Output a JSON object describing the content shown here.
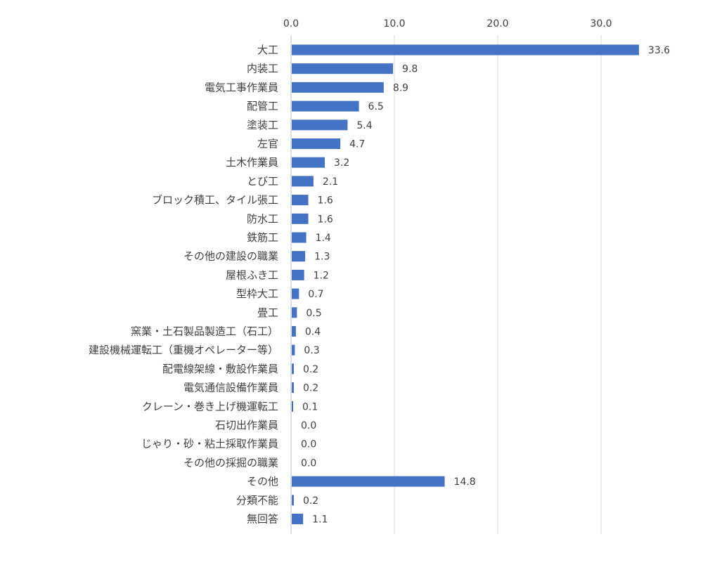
{
  "chart_data": {
    "type": "bar",
    "orientation": "horizontal",
    "title": "",
    "xlabel": "",
    "ylabel": "",
    "xlim": [
      0,
      32
    ],
    "ticks": [
      "0.0",
      "10.0",
      "20.0",
      "30.0"
    ],
    "tick_values": [
      0,
      10,
      20,
      30
    ],
    "grid": true,
    "bar_color": "#4472c4",
    "categories": [
      "大工",
      "内装工",
      "電気工事作業員",
      "配管工",
      "塗装工",
      "左官",
      "土木作業員",
      "とび工",
      "ブロック積工、タイル張工",
      "防水工",
      "鉄筋工",
      "その他の建設の職業",
      "屋根ふき工",
      "型枠大工",
      "畳工",
      "窯業・土石製品製造工（石工）",
      "建設機械運転工（重機オペレーター等）",
      "配電線架線・敷設作業員",
      "電気通信設備作業員",
      "クレーン・巻き上げ機運転工",
      "石切出作業員",
      "じゃり・砂・粘土採取作業員",
      "その他の採掘の職業",
      "その他",
      "分類不能",
      "無回答"
    ],
    "values": [
      33.6,
      9.8,
      8.9,
      6.5,
      5.4,
      4.7,
      3.2,
      2.1,
      1.6,
      1.6,
      1.4,
      1.3,
      1.2,
      0.7,
      0.5,
      0.4,
      0.3,
      0.2,
      0.2,
      0.1,
      0.0,
      0.0,
      0.0,
      14.8,
      0.2,
      1.1
    ],
    "value_labels": [
      "33.6",
      "9.8",
      "8.9",
      "6.5",
      "5.4",
      "4.7",
      "3.2",
      "2.1",
      "1.6",
      "1.6",
      "1.4",
      "1.3",
      "1.2",
      "0.7",
      "0.5",
      "0.4",
      "0.3",
      "0.2",
      "0.2",
      "0.1",
      "0.0",
      "0.0",
      "0.0",
      "14.8",
      "0.2",
      "1.1"
    ]
  }
}
